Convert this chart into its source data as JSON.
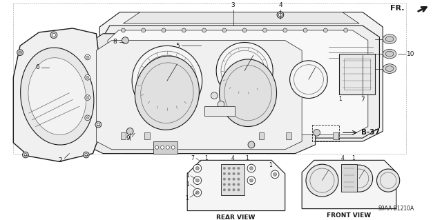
{
  "bg_color": "#ffffff",
  "fr_label": "FR.",
  "diagram_code": "S9AA-B1210A",
  "rear_view_label": "REAR VIEW",
  "front_view_label": "FRONT VIEW",
  "b37_label": "B-37",
  "line_color": "#1a1a1a",
  "gray_color": "#666666",
  "light_gray": "#cccccc"
}
